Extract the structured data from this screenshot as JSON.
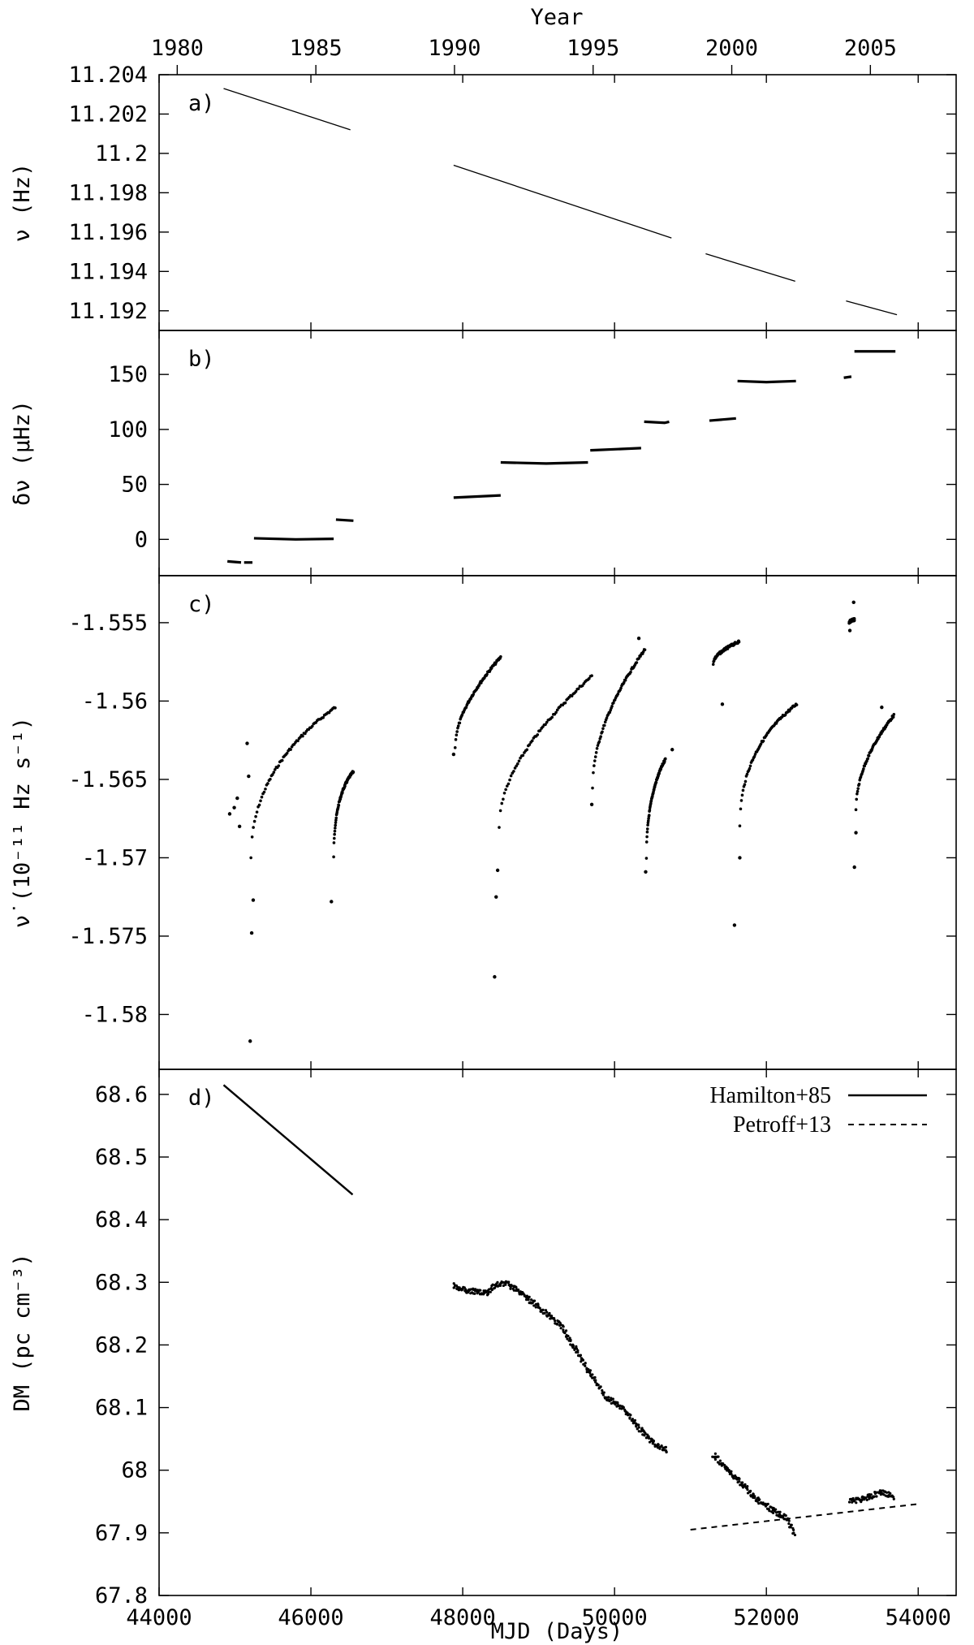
{
  "figure": {
    "top_axis_label": "Year",
    "top_ticks": [
      "1980",
      "1985",
      "1990",
      "1995",
      "2000",
      "2005"
    ],
    "bottom_axis_label": "MJD (Days)",
    "x_ticks": [
      "44000",
      "46000",
      "48000",
      "50000",
      "52000",
      "54000"
    ]
  },
  "chart_data": [
    {
      "type": "line",
      "panel_label": "a)",
      "ylabel": "ν (Hz)",
      "xlim": [
        44000,
        54500
      ],
      "ylim": [
        11.191,
        11.204
      ],
      "y_ticks": [
        "11.204",
        "11.202",
        "11.2",
        "11.198",
        "11.196",
        "11.194",
        "11.192"
      ],
      "x": "MJD",
      "series": [
        {
          "values": [
            [
              44850,
              11.2033
            ],
            [
              46520,
              11.2012
            ]
          ]
        },
        {
          "values": [
            [
              47880,
              11.1994
            ],
            [
              50750,
              11.1957
            ]
          ]
        },
        {
          "values": [
            [
              51200,
              11.1949
            ],
            [
              52380,
              11.1935
            ]
          ]
        },
        {
          "values": [
            [
              53050,
              11.1925
            ],
            [
              53720,
              11.1918
            ]
          ]
        }
      ]
    },
    {
      "type": "line",
      "panel_label": "b)",
      "ylabel": "δν (μHz)",
      "xlim": [
        44000,
        54500
      ],
      "ylim": [
        -33,
        190
      ],
      "y_ticks": [
        "0",
        "50",
        "100",
        "150"
      ],
      "x": "MJD",
      "series": [
        {
          "values": [
            [
              44900,
              -20
            ],
            [
              45080,
              -21
            ]
          ]
        },
        {
          "values": [
            [
              45120,
              -21
            ],
            [
              45230,
              -21
            ]
          ]
        },
        {
          "values": [
            [
              45250,
              1
            ],
            [
              45800,
              0
            ],
            [
              46300,
              0.5
            ]
          ]
        },
        {
          "values": [
            [
              46330,
              18
            ],
            [
              46560,
              17
            ]
          ]
        },
        {
          "values": [
            [
              47880,
              38
            ],
            [
              48500,
              40
            ]
          ]
        },
        {
          "values": [
            [
              48500,
              70
            ],
            [
              49100,
              69
            ],
            [
              49650,
              70
            ]
          ]
        },
        {
          "values": [
            [
              49680,
              81
            ],
            [
              50350,
              83
            ]
          ]
        },
        {
          "values": [
            [
              50390,
              107
            ],
            [
              50660,
              106
            ],
            [
              50720,
              107
            ]
          ]
        },
        {
          "values": [
            [
              51250,
              108
            ],
            [
              51600,
              110
            ]
          ]
        },
        {
          "values": [
            [
              51620,
              144
            ],
            [
              52000,
              143
            ],
            [
              52390,
              144
            ]
          ]
        },
        {
          "values": [
            [
              53020,
              147
            ],
            [
              53120,
              148
            ]
          ]
        },
        {
          "values": [
            [
              53160,
              171
            ],
            [
              53700,
              171
            ]
          ]
        }
      ]
    },
    {
      "type": "scatter",
      "panel_label": "c)",
      "ylabel": "ν̇ (10⁻¹¹ Hz s⁻¹)",
      "xlim": [
        44000,
        54500
      ],
      "ylim": [
        -1.5835,
        -1.552
      ],
      "y_ticks": [
        "-1.555",
        "-1.56",
        "-1.565",
        "-1.57",
        "-1.575",
        "-1.58"
      ],
      "x": "MJD",
      "isolated_points": [
        [
          44930,
          -1.5672
        ],
        [
          44990,
          -1.5668
        ],
        [
          45030,
          -1.5662
        ],
        [
          45060,
          -1.568
        ],
        [
          45160,
          -1.5627
        ],
        [
          45180,
          -1.5648
        ],
        [
          45200,
          -1.5817
        ],
        [
          45220,
          -1.5748
        ],
        [
          45240,
          -1.5727
        ],
        [
          46270,
          -1.5728
        ],
        [
          47880,
          -1.5634
        ],
        [
          48420,
          -1.5776
        ],
        [
          48440,
          -1.5725
        ],
        [
          48460,
          -1.5708
        ],
        [
          49700,
          -1.5666
        ],
        [
          50320,
          -1.556
        ],
        [
          50410,
          -1.5709
        ],
        [
          50760,
          -1.5631
        ],
        [
          51420,
          -1.5602
        ],
        [
          51580,
          -1.5743
        ],
        [
          51650,
          -1.57
        ],
        [
          53100,
          -1.5555
        ],
        [
          53150,
          -1.5537
        ],
        [
          53160,
          -1.5706
        ],
        [
          53180,
          -1.5684
        ],
        [
          53520,
          -1.5604
        ]
      ],
      "recovery_segments": [
        {
          "start": [
            45210,
            -1.57
          ],
          "mid": [
            45600,
            -1.5643
          ],
          "end": [
            46320,
            -1.5604
          ]
        },
        {
          "start": [
            46300,
            -1.57
          ],
          "mid": [
            46420,
            -1.566
          ],
          "end": [
            46560,
            -1.5645
          ]
        },
        {
          "start": [
            47900,
            -1.563
          ],
          "mid": [
            48120,
            -1.5605
          ],
          "end": [
            48500,
            -1.5572
          ]
        },
        {
          "start": [
            48480,
            -1.568
          ],
          "mid": [
            48900,
            -1.5638
          ],
          "end": [
            49700,
            -1.5584
          ]
        },
        {
          "start": [
            49710,
            -1.5655
          ],
          "mid": [
            49950,
            -1.5615
          ],
          "end": [
            50400,
            -1.5567
          ]
        },
        {
          "start": [
            50420,
            -1.57
          ],
          "mid": [
            50570,
            -1.566
          ],
          "end": [
            50670,
            -1.5637
          ]
        },
        {
          "start": [
            51300,
            -1.5576
          ],
          "mid": [
            51450,
            -1.557
          ],
          "end": [
            51640,
            -1.5562
          ]
        },
        {
          "start": [
            51650,
            -1.568
          ],
          "mid": [
            51950,
            -1.563
          ],
          "end": [
            52400,
            -1.5602
          ]
        },
        {
          "start": [
            53090,
            -1.555
          ],
          "mid": [
            53120,
            -1.5549
          ],
          "end": [
            53160,
            -1.5548
          ]
        },
        {
          "start": [
            53180,
            -1.567
          ],
          "mid": [
            53400,
            -1.564
          ],
          "end": [
            53680,
            -1.5609
          ]
        }
      ]
    },
    {
      "type": "scatter",
      "panel_label": "d)",
      "ylabel": "DM (pc cm⁻³)",
      "xlabel": "MJD (Days)",
      "xlim": [
        44000,
        54500
      ],
      "ylim": [
        67.8,
        68.64
      ],
      "y_ticks": [
        "68.6",
        "68.5",
        "68.4",
        "68.3",
        "68.2",
        "68.1",
        "68",
        "67.9",
        "67.8"
      ],
      "legend_position": "top-right",
      "lines": [
        {
          "name": "Hamilton+85",
          "style": "solid",
          "values": [
            [
              44850,
              68.615
            ],
            [
              46550,
              68.44
            ]
          ]
        },
        {
          "name": "Petroff+13",
          "style": "dashed",
          "values": [
            [
              51000,
              67.905
            ],
            [
              54000,
              67.946
            ]
          ]
        }
      ],
      "dm_track": [
        [
          47880,
          68.295
        ],
        [
          48000,
          68.288
        ],
        [
          48150,
          68.285
        ],
        [
          48300,
          68.282
        ],
        [
          48450,
          68.297
        ],
        [
          48600,
          68.297
        ],
        [
          48750,
          68.285
        ],
        [
          48900,
          68.27
        ],
        [
          49100,
          68.25
        ],
        [
          49300,
          68.23
        ],
        [
          49500,
          68.19
        ],
        [
          49700,
          68.15
        ],
        [
          49900,
          68.115
        ],
        [
          50100,
          68.1
        ],
        [
          50300,
          68.07
        ],
        [
          50500,
          68.045
        ],
        [
          50700,
          68.03
        ],
        [
          51300,
          68.025
        ],
        [
          51500,
          68.0
        ],
        [
          51700,
          67.975
        ],
        [
          51900,
          67.95
        ],
        [
          52100,
          67.935
        ],
        [
          52250,
          67.925
        ],
        [
          52380,
          67.895
        ],
        [
          53100,
          67.95
        ],
        [
          53300,
          67.955
        ],
        [
          53500,
          67.965
        ],
        [
          53680,
          67.958
        ]
      ]
    }
  ]
}
